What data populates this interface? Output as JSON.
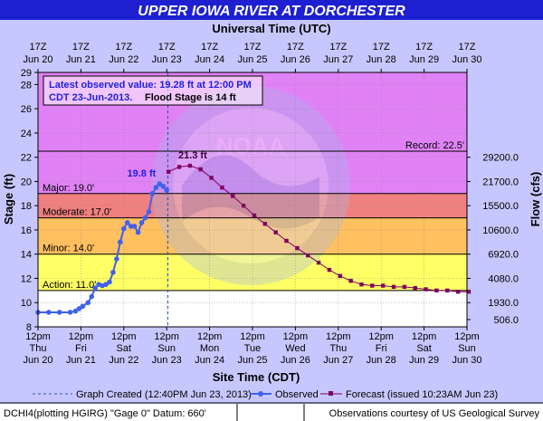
{
  "header": {
    "title": "UPPER IOWA RIVER AT DORCHESTER",
    "top_axis_title": "Universal Time (UTC)"
  },
  "colors": {
    "title_bar": "#1e1fd0",
    "background": "#c7c7ff",
    "plot_fill": "#ffffff",
    "record_band": "#e082f5",
    "major_band": "#f08080",
    "moderate_band": "#ffc060",
    "minor_band": "#ffff66",
    "observed": "#4060f0",
    "forecast": "#800060"
  },
  "chart_data": {
    "type": "line",
    "title": "UPPER IOWA RIVER AT DORCHESTER",
    "xlabel": "Site Time (CDT)",
    "x2label": "Universal Time (UTC)",
    "ylabel": "Stage (ft)",
    "y2label": "Flow (cfs)",
    "xlim": [
      "2013-06-20 12:00",
      "2013-06-30 12:00"
    ],
    "ylim": [
      8,
      29
    ],
    "grid": true,
    "x_ticks_bottom": [
      {
        "time": "12pm",
        "day": "Thu",
        "date": "Jun 20"
      },
      {
        "time": "12pm",
        "day": "Fri",
        "date": "Jun 21"
      },
      {
        "time": "12pm",
        "day": "Sat",
        "date": "Jun 22"
      },
      {
        "time": "12pm",
        "day": "Sun",
        "date": "Jun 23"
      },
      {
        "time": "12pm",
        "day": "Mon",
        "date": "Jun 24"
      },
      {
        "time": "12pm",
        "day": "Tue",
        "date": "Jun 25"
      },
      {
        "time": "12pm",
        "day": "Wed",
        "date": "Jun 26"
      },
      {
        "time": "12pm",
        "day": "Thu",
        "date": "Jun 27"
      },
      {
        "time": "12pm",
        "day": "Fri",
        "date": "Jun 28"
      },
      {
        "time": "12pm",
        "day": "Sat",
        "date": "Jun 29"
      },
      {
        "time": "12pm",
        "day": "Sun",
        "date": "Jun 30"
      }
    ],
    "x_ticks_top": [
      {
        "time": "17Z",
        "date": "Jun 20"
      },
      {
        "time": "17Z",
        "date": "Jun 21"
      },
      {
        "time": "17Z",
        "date": "Jun 22"
      },
      {
        "time": "17Z",
        "date": "Jun 23"
      },
      {
        "time": "17Z",
        "date": "Jun 24"
      },
      {
        "time": "17Z",
        "date": "Jun 25"
      },
      {
        "time": "17Z",
        "date": "Jun 26"
      },
      {
        "time": "17Z",
        "date": "Jun 27"
      },
      {
        "time": "17Z",
        "date": "Jun 28"
      },
      {
        "time": "17Z",
        "date": "Jun 29"
      },
      {
        "time": "17Z",
        "date": "Jun 30"
      }
    ],
    "y_ticks": [
      8,
      10,
      12,
      14,
      16,
      18,
      20,
      22,
      24,
      26,
      28,
      29
    ],
    "y2_ticks": [
      {
        "stage": 8.6,
        "label": "506.0"
      },
      {
        "stage": 10.0,
        "label": "1930.0"
      },
      {
        "stage": 12.0,
        "label": "4080.0"
      },
      {
        "stage": 14.0,
        "label": "6920.0"
      },
      {
        "stage": 16.0,
        "label": "10600.0"
      },
      {
        "stage": 18.0,
        "label": "15500.0"
      },
      {
        "stage": 20.0,
        "label": "21700.0"
      },
      {
        "stage": 22.0,
        "label": "29200.0"
      }
    ],
    "flood_categories": [
      {
        "name": "Record",
        "label": "Record: 22.5'",
        "stage": 22.5
      },
      {
        "name": "Major",
        "label": "Major: 19.0'",
        "stage": 19.0
      },
      {
        "name": "Moderate",
        "label": "Moderate: 17.0'",
        "stage": 17.0
      },
      {
        "name": "Minor",
        "label": "Minor: 14.0'",
        "stage": 14.0
      },
      {
        "name": "Action",
        "label": "Action: 11.0'",
        "stage": 11.0
      }
    ],
    "series": [
      {
        "name": "Observed",
        "points": [
          [
            "2013-06-20 12:00",
            9.2
          ],
          [
            "2013-06-20 18:00",
            9.2
          ],
          [
            "2013-06-21 00:00",
            9.2
          ],
          [
            "2013-06-21 06:00",
            9.2
          ],
          [
            "2013-06-21 09:00",
            9.3
          ],
          [
            "2013-06-21 11:00",
            9.5
          ],
          [
            "2013-06-21 13:00",
            9.7
          ],
          [
            "2013-06-21 16:00",
            10.0
          ],
          [
            "2013-06-21 18:00",
            10.5
          ],
          [
            "2013-06-21 20:00",
            11.2
          ],
          [
            "2013-06-21 22:00",
            11.5
          ],
          [
            "2013-06-22 00:00",
            11.4
          ],
          [
            "2013-06-22 02:00",
            11.5
          ],
          [
            "2013-06-22 04:00",
            11.7
          ],
          [
            "2013-06-22 06:00",
            12.5
          ],
          [
            "2013-06-22 08:00",
            13.6
          ],
          [
            "2013-06-22 10:00",
            15.0
          ],
          [
            "2013-06-22 12:00",
            16.1
          ],
          [
            "2013-06-22 14:00",
            16.6
          ],
          [
            "2013-06-22 16:00",
            16.3
          ],
          [
            "2013-06-22 18:00",
            16.3
          ],
          [
            "2013-06-22 20:00",
            15.8
          ],
          [
            "2013-06-22 22:00",
            16.6
          ],
          [
            "2013-06-23 00:00",
            17.0
          ],
          [
            "2013-06-23 02:00",
            17.5
          ],
          [
            "2013-06-23 04:00",
            19.0
          ],
          [
            "2013-06-23 06:00",
            19.5
          ],
          [
            "2013-06-23 08:00",
            19.8
          ],
          [
            "2013-06-23 10:00",
            19.6
          ],
          [
            "2013-06-23 12:00",
            19.28
          ]
        ]
      },
      {
        "name": "Forecast (issued 10:23AM Jun 23)",
        "points": [
          [
            "2013-06-23 13:00",
            20.8
          ],
          [
            "2013-06-23 19:00",
            21.2
          ],
          [
            "2013-06-24 01:00",
            21.3
          ],
          [
            "2013-06-24 07:00",
            21.0
          ],
          [
            "2013-06-24 13:00",
            20.3
          ],
          [
            "2013-06-24 19:00",
            19.5
          ],
          [
            "2013-06-25 01:00",
            18.8
          ],
          [
            "2013-06-25 07:00",
            18.0
          ],
          [
            "2013-06-25 13:00",
            17.2
          ],
          [
            "2013-06-25 19:00",
            16.5
          ],
          [
            "2013-06-26 01:00",
            15.8
          ],
          [
            "2013-06-26 07:00",
            15.1
          ],
          [
            "2013-06-26 13:00",
            14.5
          ],
          [
            "2013-06-26 19:00",
            13.9
          ],
          [
            "2013-06-27 01:00",
            13.3
          ],
          [
            "2013-06-27 07:00",
            12.7
          ],
          [
            "2013-06-27 13:00",
            12.2
          ],
          [
            "2013-06-27 19:00",
            11.8
          ],
          [
            "2013-06-28 01:00",
            11.5
          ],
          [
            "2013-06-28 07:00",
            11.4
          ],
          [
            "2013-06-28 13:00",
            11.4
          ],
          [
            "2013-06-28 19:00",
            11.3
          ],
          [
            "2013-06-29 01:00",
            11.3
          ],
          [
            "2013-06-29 07:00",
            11.2
          ],
          [
            "2013-06-29 13:00",
            11.1
          ],
          [
            "2013-06-29 19:00",
            11.0
          ],
          [
            "2013-06-30 01:00",
            11.0
          ],
          [
            "2013-06-30 07:00",
            10.9
          ],
          [
            "2013-06-30 13:00",
            10.9
          ]
        ]
      }
    ],
    "annotations": {
      "latest_line1": "Latest observed value: 19.28 ft at 12:00 PM",
      "latest_line2_a": "CDT 23-Jun-2013.",
      "latest_line2_b": "Flood Stage is 14 ft",
      "peak_observed": {
        "label": "19.8 ft",
        "time": "2013-06-23 08:00",
        "stage": 19.8
      },
      "peak_forecast": {
        "label": "21.3 ft",
        "time": "2013-06-24 01:00",
        "stage": 21.3
      },
      "graph_created_time": "2013-06-23 12:40"
    },
    "legend": {
      "placement": "bottom",
      "graph_created": "Graph Created (12:40PM Jun 23, 2013)",
      "observed": "Observed",
      "forecast": "Forecast (issued 10:23AM Jun 23)"
    }
  },
  "footer": {
    "left": "DCHI4(plotting HGIRG) \"Gage 0\" Datum:  660'",
    "right": "Observations courtesy of US Geological Survey"
  }
}
